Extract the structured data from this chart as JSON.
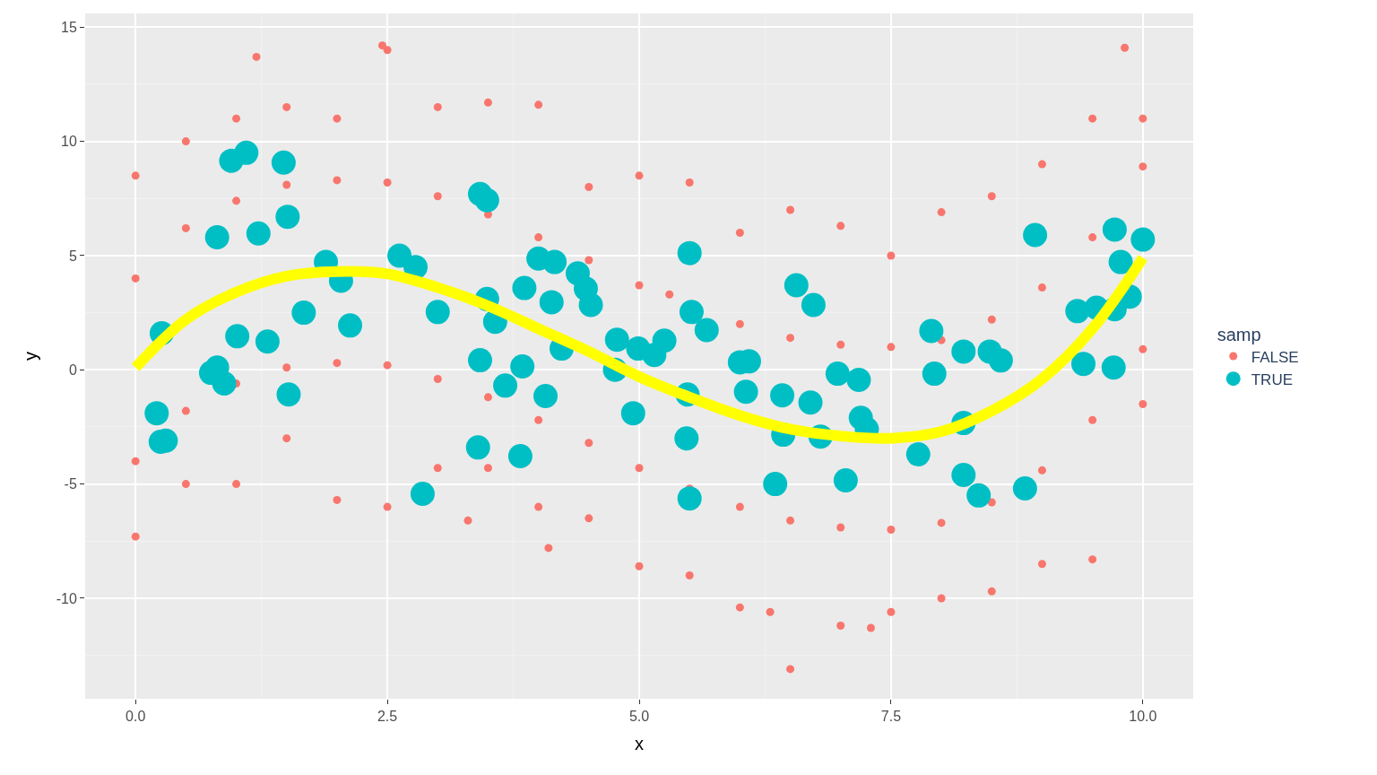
{
  "chart_data": {
    "type": "scatter",
    "xlabel": "x",
    "ylabel": "y",
    "legend_title": "samp",
    "legend": "right",
    "grid": true,
    "marker": "circle",
    "xlim": [
      -0.5,
      10.5
    ],
    "ylim": [
      -14.4,
      15.6
    ],
    "xticks": [
      {
        "value": 0,
        "label": "0.0"
      },
      {
        "value": 2.5,
        "label": "2.5"
      },
      {
        "value": 5,
        "label": "5.0"
      },
      {
        "value": 7.5,
        "label": "7.5"
      },
      {
        "value": 10,
        "label": "10.0"
      }
    ],
    "yticks": [
      -10,
      -5,
      0,
      5,
      10,
      15
    ],
    "series": [
      {
        "name": "FALSE",
        "color": "#f8766d",
        "x": [
          0,
          0,
          0,
          0,
          0.5,
          0.5,
          0.5,
          0.5,
          1,
          1,
          1,
          1,
          1.5,
          1.5,
          1.5,
          1.5,
          2,
          2,
          2,
          2,
          2.5,
          2.5,
          2.5,
          2.5,
          3,
          3,
          3,
          3,
          3.5,
          3.5,
          3.5,
          3.5,
          4,
          4,
          4,
          4,
          4.5,
          4.5,
          4.5,
          4.5,
          5,
          5,
          5,
          5,
          5.5,
          5.3,
          5.5,
          5.5,
          6,
          6,
          6,
          6,
          6.5,
          6.5,
          6.5,
          6.5,
          7,
          7,
          7,
          7,
          7.5,
          7.5,
          7.5,
          7.5,
          8,
          8,
          8,
          8,
          8.5,
          8.5,
          8.5,
          8.5,
          9,
          9,
          9,
          9,
          9.5,
          9.5,
          9.5,
          9.5,
          10,
          10,
          10,
          10,
          1.2,
          2.45,
          9.82,
          3.3,
          4.1,
          6.3,
          7.3
        ],
        "values": [
          8.5,
          4,
          -4,
          -7.3,
          10,
          6.2,
          -1.8,
          -5,
          11,
          7.4,
          -0.6,
          -5,
          11.5,
          8.1,
          0.1,
          -3,
          11,
          8.3,
          0.3,
          -5.7,
          14,
          8.2,
          0.2,
          -6,
          11.5,
          7.6,
          -0.4,
          -4.3,
          11.7,
          6.8,
          -1.2,
          -4.3,
          11.6,
          5.8,
          -2.2,
          -6,
          8,
          4.8,
          -3.2,
          -6.5,
          8.5,
          3.7,
          -4.3,
          -8.6,
          8.2,
          3.3,
          -5.2,
          -9,
          6,
          2,
          -6,
          -10.4,
          7,
          1.4,
          -6.6,
          -13.1,
          6.3,
          1.1,
          -6.9,
          -11.2,
          5,
          1,
          -7,
          -10.6,
          6.9,
          1.3,
          -6.7,
          -10,
          7.6,
          2.2,
          -5.8,
          -9.7,
          9,
          3.6,
          -4.4,
          -8.5,
          11,
          5.8,
          -2.2,
          -8.3,
          11,
          8.9,
          0.9,
          -1.5,
          13.7,
          14.2,
          14.1,
          -6.6,
          -7.8,
          -10.6,
          -11.3
        ]
      },
      {
        "name": "TRUE",
        "color": "#00bfc4",
        "x": [
          0.26,
          0.21,
          0.25,
          0.3,
          0.95,
          1.1,
          1.47,
          0.81,
          1.22,
          1.51,
          1.89,
          2.04,
          2.13,
          1.67,
          1.01,
          1.31,
          0.75,
          0.81,
          0.88,
          1.52,
          2.62,
          2.78,
          3.0,
          2.85,
          3.42,
          3.49,
          3.49,
          3.57,
          3.42,
          3.4,
          3.67,
          3.84,
          3.82,
          3.86,
          4.0,
          4.16,
          4.13,
          4.07,
          4.23,
          4.39,
          4.47,
          4.52,
          4.78,
          4.76,
          4.99,
          5.15,
          5.25,
          4.94,
          5.5,
          5.52,
          5.67,
          5.48,
          5.47,
          5.5,
          6.0,
          6.09,
          6.06,
          6.35,
          6.42,
          6.43,
          6.56,
          6.73,
          6.7,
          6.8,
          6.97,
          7.18,
          7.2,
          7.26,
          7.05,
          7.9,
          7.93,
          7.77,
          8.22,
          8.22,
          8.22,
          8.37,
          8.48,
          8.59,
          8.83,
          8.93,
          9.35,
          9.41,
          9.54,
          9.72,
          9.72,
          9.78,
          9.87,
          9.71,
          10.0
        ],
        "values": [
          1.6,
          -1.9,
          -3.15,
          -3.1,
          9.15,
          9.5,
          9.07,
          5.8,
          5.97,
          6.7,
          4.72,
          3.9,
          1.94,
          2.5,
          1.47,
          1.24,
          -0.13,
          0.1,
          -0.6,
          -1.08,
          5.0,
          4.5,
          2.53,
          -5.43,
          7.7,
          7.42,
          3.1,
          2.1,
          0.42,
          -3.4,
          -0.69,
          0.15,
          -3.78,
          3.58,
          4.87,
          4.72,
          2.96,
          -1.15,
          0.93,
          4.22,
          3.55,
          2.84,
          1.32,
          0.0,
          0.93,
          0.65,
          1.28,
          -1.9,
          5.11,
          2.53,
          1.74,
          -1.08,
          -3.0,
          -5.63,
          0.33,
          0.37,
          -0.96,
          -5.0,
          -1.12,
          -2.84,
          3.7,
          2.84,
          -1.43,
          -2.92,
          -0.17,
          -0.44,
          -2.1,
          -2.6,
          -4.84,
          1.7,
          -0.17,
          -3.7,
          0.8,
          -2.33,
          -4.6,
          -5.5,
          0.8,
          0.41,
          -5.19,
          5.9,
          2.57,
          0.26,
          2.72,
          2.65,
          6.14,
          4.72,
          3.2,
          0.1,
          5.7
        ]
      },
      {
        "color": "#ffff00",
        "type": "line",
        "marker": "none",
        "x": [
          0,
          0.5,
          1,
          1.5,
          2,
          2.5,
          3,
          3.5,
          4,
          4.5,
          5,
          5.5,
          6,
          6.5,
          7,
          7.5,
          8,
          8.5,
          9,
          9.5,
          10
        ],
        "values": [
          0.1,
          2.2,
          3.4,
          4.1,
          4.3,
          4.2,
          3.6,
          2.8,
          1.8,
          0.8,
          -0.3,
          -1.2,
          -2.0,
          -2.6,
          -2.9,
          -3.0,
          -2.7,
          -1.8,
          -0.4,
          1.8,
          4.9
        ]
      }
    ]
  }
}
